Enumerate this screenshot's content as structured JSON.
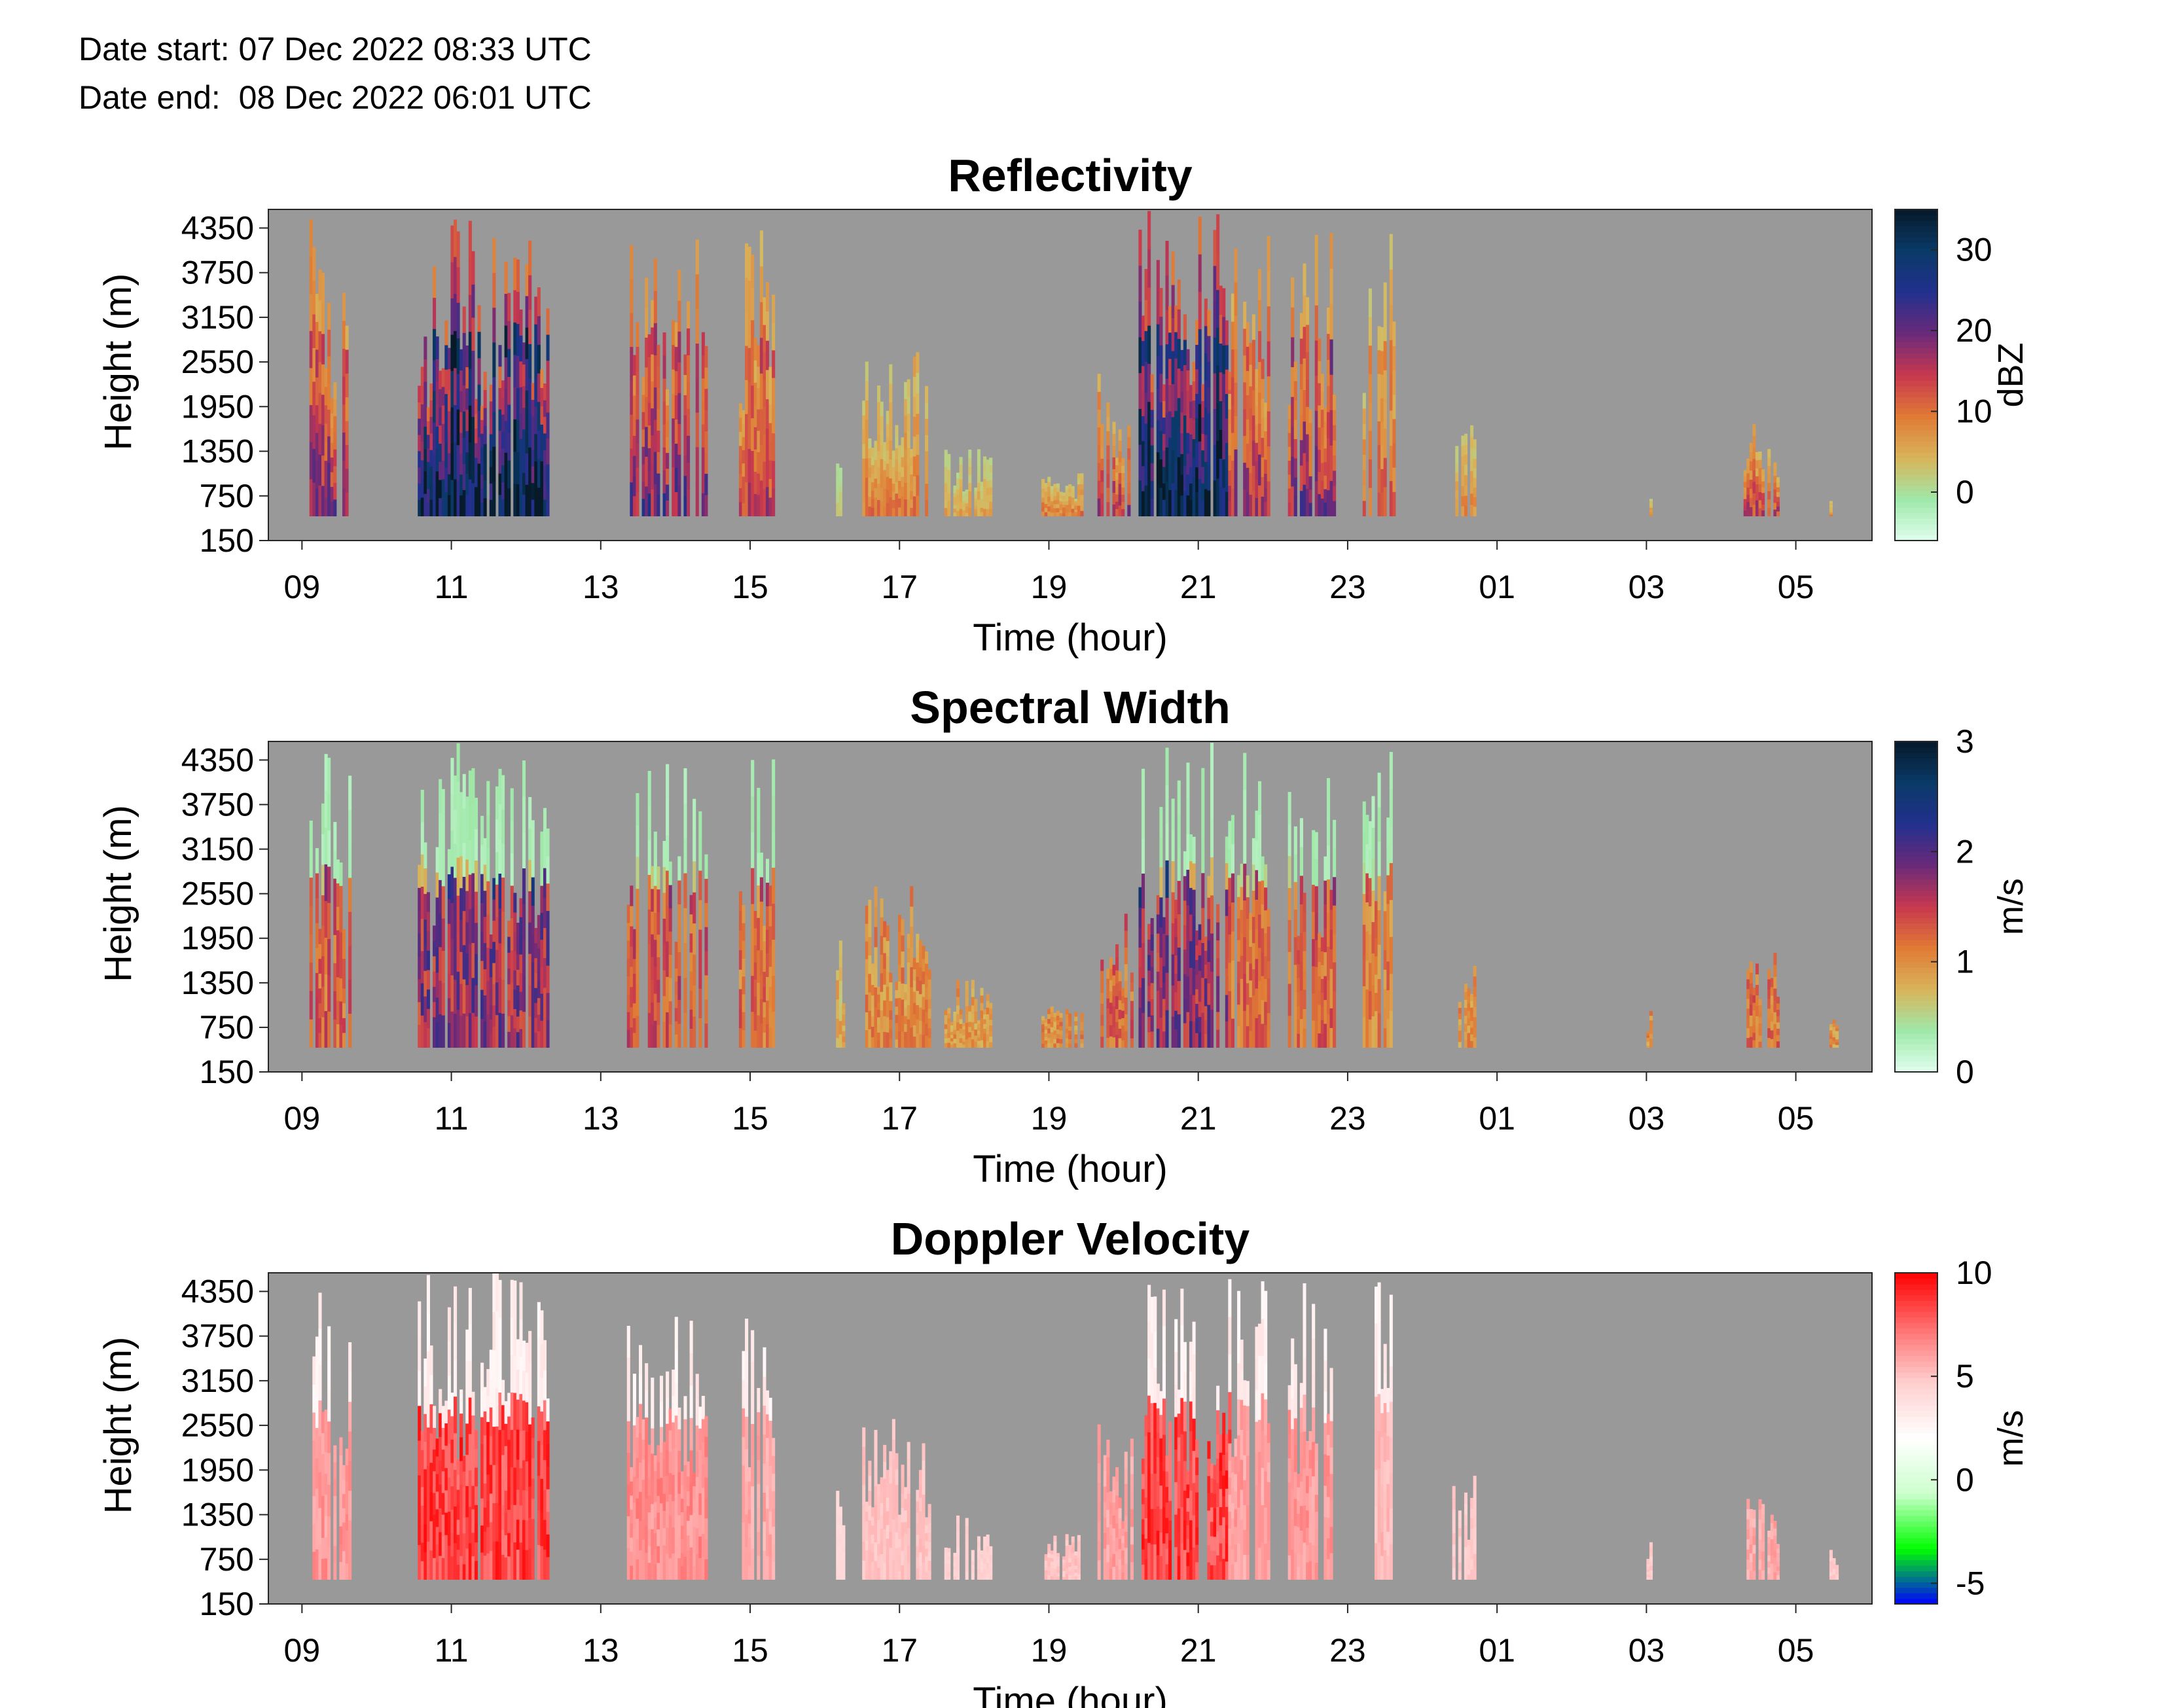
{
  "header": {
    "date_start": "Date start: 07 Dec 2022 08:33 UTC",
    "date_end": "Date end:  08 Dec 2022 06:01 UTC"
  },
  "chart_data": [
    {
      "type": "heatmap",
      "title": "Reflectivity",
      "xlabel": "Time (hour)",
      "ylabel": "Height (m)",
      "colorbar_label": "dBZ",
      "colorbar_ticks": [
        "30",
        "20",
        "10",
        "0"
      ],
      "colorbar_tick_values": [
        30,
        20,
        10,
        0
      ],
      "colorbar_range": [
        -6,
        35
      ],
      "colormap": [
        "#e0ffee",
        "#9fe8a9",
        "#d9b45a",
        "#e07a35",
        "#c8384e",
        "#6a2a7a",
        "#22308e",
        "#0a3a68",
        "#061a2a"
      ],
      "x_ticks": [
        "09",
        "11",
        "13",
        "15",
        "17",
        "19",
        "21",
        "23",
        "01",
        "03",
        "05"
      ],
      "y_ticks": [
        "4350",
        "3750",
        "3150",
        "2550",
        "1950",
        "1350",
        "750",
        "150"
      ],
      "y_tick_values": [
        4350,
        3750,
        3150,
        2550,
        1950,
        1350,
        750,
        150
      ],
      "background": "#999999",
      "x_range_hours": [
        8.55,
        30.02
      ],
      "y_range_m": [
        150,
        4600
      ]
    },
    {
      "type": "heatmap",
      "title": "Spectral Width",
      "xlabel": "Time (hour)",
      "ylabel": "Height (m)",
      "colorbar_label": "m/s",
      "colorbar_ticks": [
        "3",
        "2",
        "1",
        "0"
      ],
      "colorbar_tick_values": [
        3,
        2,
        1,
        0
      ],
      "colorbar_range": [
        0,
        3
      ],
      "colormap": [
        "#e0ffee",
        "#9fe8a9",
        "#d9b45a",
        "#e07a35",
        "#c8384e",
        "#6a2a7a",
        "#22308e",
        "#0a3a68",
        "#061a2a"
      ],
      "x_ticks": [
        "09",
        "11",
        "13",
        "15",
        "17",
        "19",
        "21",
        "23",
        "01",
        "03",
        "05"
      ],
      "y_ticks": [
        "4350",
        "3750",
        "3150",
        "2550",
        "1950",
        "1350",
        "750",
        "150"
      ],
      "y_tick_values": [
        4350,
        3750,
        3150,
        2550,
        1950,
        1350,
        750,
        150
      ],
      "background": "#999999",
      "x_range_hours": [
        8.55,
        30.02
      ],
      "y_range_m": [
        150,
        4600
      ]
    },
    {
      "type": "heatmap",
      "title": "Doppler Velocity",
      "xlabel": "Time (hour)",
      "ylabel": "Height (m)",
      "colorbar_label": "m/s",
      "colorbar_ticks": [
        "10",
        "5",
        "0",
        "-5"
      ],
      "colorbar_tick_values": [
        10,
        5,
        0,
        -5
      ],
      "colorbar_range": [
        -6,
        10
      ],
      "colormap": [
        "#0000ff",
        "#00ff00",
        "#ccffcc",
        "#ffffff",
        "#ffd0d0",
        "#ff7070",
        "#ff0000"
      ],
      "x_ticks": [
        "09",
        "11",
        "13",
        "15",
        "17",
        "19",
        "21",
        "23",
        "01",
        "03",
        "05"
      ],
      "y_ticks": [
        "4350",
        "3750",
        "3150",
        "2550",
        "1950",
        "1350",
        "750",
        "150"
      ],
      "y_tick_values": [
        4350,
        3750,
        3150,
        2550,
        1950,
        1350,
        750,
        150
      ],
      "background": "#999999",
      "x_range_hours": [
        8.55,
        30.02
      ],
      "y_range_m": [
        150,
        4600
      ]
    }
  ],
  "echo_events": [
    {
      "t0": 9.1,
      "t1": 9.65,
      "top": 4500,
      "peak": 0.55
    },
    {
      "t0": 10.55,
      "t1": 12.3,
      "top": 4600,
      "peak": 1.0
    },
    {
      "t0": 13.35,
      "t1": 14.4,
      "top": 4300,
      "peak": 0.6
    },
    {
      "t0": 14.85,
      "t1": 15.3,
      "top": 4400,
      "peak": 0.45
    },
    {
      "t0": 16.15,
      "t1": 16.25,
      "top": 2000,
      "peak": 0.1
    },
    {
      "t0": 16.5,
      "t1": 17.4,
      "top": 2700,
      "peak": 0.3
    },
    {
      "t0": 17.6,
      "t1": 18.2,
      "top": 1400,
      "peak": 0.2
    },
    {
      "t0": 18.9,
      "t1": 19.45,
      "top": 1100,
      "peak": 0.3
    },
    {
      "t0": 19.65,
      "t1": 20.1,
      "top": 2600,
      "peak": 0.5
    },
    {
      "t0": 20.2,
      "t1": 21.4,
      "top": 4600,
      "peak": 1.0
    },
    {
      "t0": 21.4,
      "t1": 21.95,
      "top": 4500,
      "peak": 0.5
    },
    {
      "t0": 22.2,
      "t1": 22.8,
      "top": 4500,
      "peak": 0.55
    },
    {
      "t0": 23.2,
      "t1": 23.6,
      "top": 4500,
      "peak": 0.35
    },
    {
      "t0": 24.4,
      "t1": 24.7,
      "top": 1900,
      "peak": 0.25
    },
    {
      "t0": 27.0,
      "t1": 27.1,
      "top": 1000,
      "peak": 0.25
    },
    {
      "t0": 28.3,
      "t1": 28.75,
      "top": 1800,
      "peak": 0.45
    },
    {
      "t0": 29.45,
      "t1": 29.55,
      "top": 900,
      "peak": 0.25
    }
  ]
}
